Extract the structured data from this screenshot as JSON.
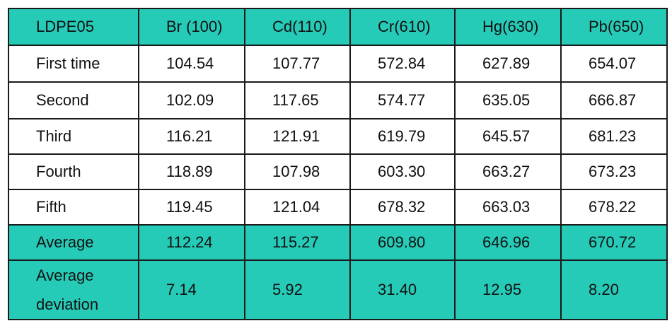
{
  "table": {
    "header": [
      "LDPE05",
      "Br (100)",
      "Cd(110)",
      "Cr(610)",
      "Hg(630)",
      "Pb(650)"
    ],
    "rows": [
      [
        "First time",
        "104.54",
        "107.77",
        "572.84",
        "627.89",
        "654.07"
      ],
      [
        "Second",
        "102.09",
        "117.65",
        "574.77",
        "635.05",
        "666.87"
      ],
      [
        "Third",
        "116.21",
        "121.91",
        "619.79",
        "645.57",
        "681.23"
      ],
      [
        "Fourth",
        "118.89",
        "107.98",
        "603.30",
        "663.27",
        "673.23"
      ],
      [
        "Fifth",
        "119.45",
        "121.04",
        "678.32",
        "663.03",
        "678.22"
      ]
    ],
    "average": [
      "Average",
      "112.24",
      "115.27",
      "609.80",
      "646.96",
      "670.72"
    ],
    "deviation": {
      "label_line1": "Average",
      "label_line2": "deviation",
      "values": [
        "7.14",
        "5.92",
        "31.40",
        "12.95",
        "8.20"
      ]
    }
  },
  "colors": {
    "accent": "#26cbb8",
    "border": "#1a1a1a",
    "text": "#111111"
  }
}
